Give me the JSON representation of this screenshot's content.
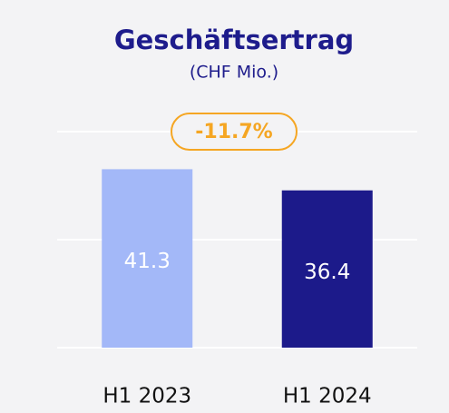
{
  "chart_data": {
    "type": "bar",
    "title": "Geschäftsertrag",
    "subtitle": "(CHF Mio.)",
    "annotation": "-11.7%",
    "categories": [
      "H1 2023",
      "H1 2024"
    ],
    "values": [
      41.3,
      36.4
    ],
    "colors": [
      "#a3b8f8",
      "#1c1a8a"
    ],
    "ylim": [
      0,
      50
    ],
    "yticks": [
      0,
      25,
      50
    ],
    "grid": true
  }
}
